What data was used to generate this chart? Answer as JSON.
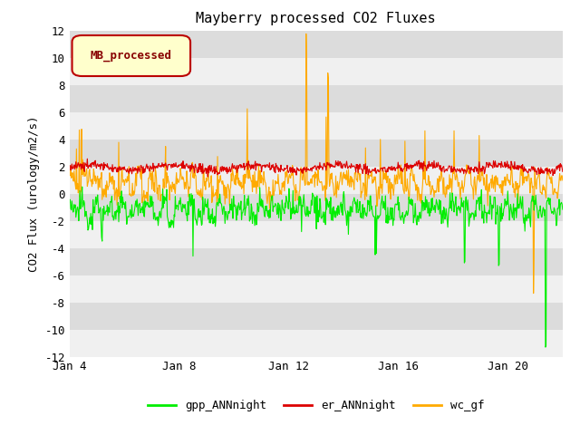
{
  "title": "Mayberry processed CO2 Fluxes",
  "ylabel": "CO2 Flux (urology/m2/s)",
  "ylim": [
    -12,
    12
  ],
  "yticks": [
    -12,
    -10,
    -8,
    -6,
    -4,
    -2,
    0,
    2,
    4,
    6,
    8,
    10,
    12
  ],
  "bg_color": "#dcdcdc",
  "fig_color": "#ffffff",
  "grid_color": "#f0f0f0",
  "n_points": 864,
  "colors": {
    "gpp": "#00ee00",
    "er": "#dd0000",
    "wc": "#ffaa00"
  },
  "legend_label": "MB_processed",
  "legend_box_color": "#ffffcc",
  "legend_box_edge": "#bb0000",
  "legend_text_color": "#880000",
  "xtick_positions": [
    0,
    4,
    8,
    12,
    16
  ],
  "xtick_labels": [
    "Jan 4",
    "Jan 8",
    "Jan 12",
    "Jan 16",
    "Jan 20"
  ],
  "xlim": [
    0,
    18
  ]
}
